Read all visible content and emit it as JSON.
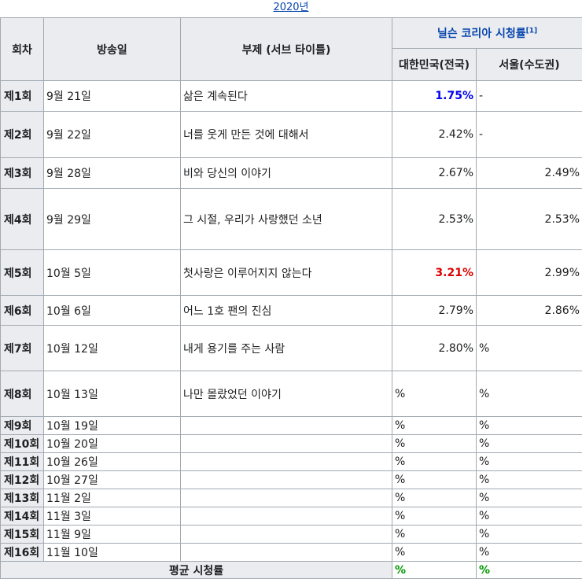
{
  "caption": {
    "year": "2020년"
  },
  "headers": {
    "episode": "회차",
    "airdate": "방송일",
    "subtitle": "부제 (서브 타이틀)",
    "ratings_group": "닐슨 코리아 시청률",
    "ref": "[1]",
    "national": "대한민국(전국)",
    "seoul": "서울(수도권)"
  },
  "rows": [
    {
      "ep": "제1회",
      "date": "9월 21일",
      "title": "삶은 계속된다",
      "nat": "1.75%",
      "seoul": "-"
    },
    {
      "ep": "제2회",
      "date": "9월 22일",
      "title": "너를 웃게 만든 것에 대해서",
      "nat": "2.42%",
      "seoul": "-"
    },
    {
      "ep": "제3회",
      "date": "9월 28일",
      "title": "비와 당신의 이야기",
      "nat": "2.67%",
      "seoul": "2.49%"
    },
    {
      "ep": "제4회",
      "date": "9월 29일",
      "title": "그 시절, 우리가 사랑했던 소년",
      "nat": "2.53%",
      "seoul": "2.53%"
    },
    {
      "ep": "제5회",
      "date": "10월 5일",
      "title": "첫사랑은 이루어지지 않는다",
      "nat": "3.21%",
      "seoul": "2.99%"
    },
    {
      "ep": "제6회",
      "date": "10월 6일",
      "title": "어느 1호 팬의 진심",
      "nat": "2.79%",
      "seoul": "2.86%"
    },
    {
      "ep": "제7회",
      "date": "10월 12일",
      "title": "내게 용기를 주는 사람",
      "nat": "2.80%",
      "seoul": "%"
    },
    {
      "ep": "제8회",
      "date": "10월 13일",
      "title": "나만 몰랐었던 이야기",
      "nat": "%",
      "seoul": "%"
    },
    {
      "ep": "제9회",
      "date": "10월 19일",
      "title": "",
      "nat": "%",
      "seoul": "%"
    },
    {
      "ep": "제10회",
      "date": "10월 20일",
      "title": "",
      "nat": "%",
      "seoul": "%"
    },
    {
      "ep": "제11회",
      "date": "10월 26일",
      "title": "",
      "nat": "%",
      "seoul": "%"
    },
    {
      "ep": "제12회",
      "date": "10월 27일",
      "title": "",
      "nat": "%",
      "seoul": "%"
    },
    {
      "ep": "제13회",
      "date": "11월 2일",
      "title": "",
      "nat": "%",
      "seoul": "%"
    },
    {
      "ep": "제14회",
      "date": "11월 3일",
      "title": "",
      "nat": "%",
      "seoul": "%"
    },
    {
      "ep": "제15회",
      "date": "11월 9일",
      "title": "",
      "nat": "%",
      "seoul": "%"
    },
    {
      "ep": "제16회",
      "date": "11월 10일",
      "title": "",
      "nat": "%",
      "seoul": "%"
    }
  ],
  "footer": {
    "label": "평균 시청률",
    "nat": "%",
    "seoul": "%"
  },
  "colors": {
    "highest": "#dd0000",
    "lowest": "#0000ee",
    "average": "#009900"
  }
}
